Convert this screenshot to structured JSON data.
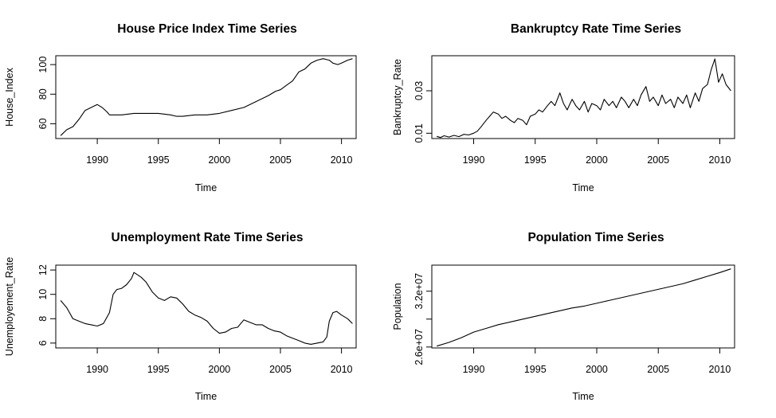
{
  "chart_data": [
    {
      "type": "line",
      "title": "House Price Index Time Series",
      "xlabel": "Time",
      "ylabel": "House_Index",
      "xlim": [
        1986.6,
        2011.2
      ],
      "ylim": [
        50,
        106
      ],
      "xticks": [
        1990,
        1995,
        2000,
        2005,
        2010
      ],
      "yticks": [
        60,
        80,
        100
      ],
      "ytick_labels": [
        "60",
        "80",
        "100"
      ],
      "x": [
        1987.0,
        1987.5,
        1988.0,
        1988.5,
        1989.0,
        1989.5,
        1990.0,
        1990.4,
        1990.8,
        1991.0,
        1991.5,
        1992.0,
        1993.0,
        1994.0,
        1995.0,
        1996.0,
        1996.5,
        1997.0,
        1998.0,
        1999.0,
        2000.0,
        2001.0,
        2002.0,
        2003.0,
        2004.0,
        2004.6,
        2005.0,
        2005.5,
        2006.0,
        2006.5,
        2007.0,
        2007.5,
        2008.0,
        2008.5,
        2009.0,
        2009.3,
        2009.7,
        2010.0,
        2010.5,
        2010.9
      ],
      "y": [
        52,
        56,
        58,
        63,
        69,
        71,
        73,
        71,
        68,
        66,
        66,
        66,
        67,
        67,
        67,
        66,
        65,
        65,
        66,
        66,
        67,
        69,
        71,
        75,
        79,
        82,
        83,
        86,
        89,
        95,
        97,
        101,
        103,
        104,
        103,
        101,
        100,
        101,
        103,
        104
      ]
    },
    {
      "type": "line",
      "title": "Bankruptcy Rate Time Series",
      "xlabel": "Time",
      "ylabel": "Bankruptcy_Rate",
      "xlim": [
        1986.6,
        2011.2
      ],
      "ylim": [
        0.0075,
        0.0465
      ],
      "xticks": [
        1990,
        1995,
        2000,
        2005,
        2010
      ],
      "yticks": [
        0.01,
        0.03
      ],
      "ytick_labels": [
        "0.01",
        "0.03"
      ],
      "x": [
        1987.0,
        1987.3,
        1987.6,
        1988.0,
        1988.4,
        1988.8,
        1989.2,
        1989.6,
        1990.0,
        1990.3,
        1990.6,
        1991.0,
        1991.3,
        1991.6,
        1992.0,
        1992.3,
        1992.6,
        1993.0,
        1993.3,
        1993.6,
        1994.0,
        1994.3,
        1994.6,
        1995.0,
        1995.3,
        1995.6,
        1996.0,
        1996.3,
        1996.6,
        1997.0,
        1997.3,
        1997.6,
        1998.0,
        1998.3,
        1998.6,
        1999.0,
        1999.3,
        1999.6,
        2000.0,
        2000.3,
        2000.6,
        2001.0,
        2001.3,
        2001.6,
        2002.0,
        2002.3,
        2002.6,
        2003.0,
        2003.3,
        2003.6,
        2004.0,
        2004.3,
        2004.6,
        2005.0,
        2005.3,
        2005.6,
        2006.0,
        2006.3,
        2006.6,
        2007.0,
        2007.3,
        2007.6,
        2008.0,
        2008.3,
        2008.6,
        2009.0,
        2009.3,
        2009.6,
        2009.9,
        2010.2,
        2010.5,
        2010.9
      ],
      "y": [
        0.0085,
        0.008,
        0.0088,
        0.0082,
        0.009,
        0.0084,
        0.0095,
        0.0092,
        0.01,
        0.011,
        0.013,
        0.016,
        0.018,
        0.02,
        0.019,
        0.017,
        0.018,
        0.016,
        0.015,
        0.017,
        0.016,
        0.014,
        0.018,
        0.019,
        0.021,
        0.02,
        0.023,
        0.025,
        0.023,
        0.029,
        0.024,
        0.021,
        0.026,
        0.023,
        0.021,
        0.025,
        0.02,
        0.024,
        0.023,
        0.021,
        0.026,
        0.023,
        0.025,
        0.022,
        0.027,
        0.025,
        0.022,
        0.026,
        0.023,
        0.028,
        0.032,
        0.025,
        0.027,
        0.023,
        0.028,
        0.024,
        0.026,
        0.022,
        0.027,
        0.024,
        0.028,
        0.022,
        0.029,
        0.025,
        0.031,
        0.033,
        0.04,
        0.045,
        0.034,
        0.038,
        0.033,
        0.03
      ]
    },
    {
      "type": "line",
      "title": "Unemployment Rate Time Series",
      "xlabel": "Time",
      "ylabel": "Unemployement_Rate",
      "xlim": [
        1986.6,
        2011.2
      ],
      "ylim": [
        5.6,
        12.4
      ],
      "xticks": [
        1990,
        1995,
        2000,
        2005,
        2010
      ],
      "yticks": [
        6,
        8,
        10,
        12
      ],
      "ytick_labels": [
        "6",
        "8",
        "10",
        "12"
      ],
      "x": [
        1987.0,
        1987.5,
        1988.0,
        1988.5,
        1989.0,
        1989.5,
        1990.0,
        1990.5,
        1991.0,
        1991.3,
        1991.6,
        1992.0,
        1992.4,
        1992.8,
        1993.0,
        1993.3,
        1993.6,
        1994.0,
        1994.5,
        1995.0,
        1995.5,
        1996.0,
        1996.5,
        1997.0,
        1997.5,
        1998.0,
        1998.5,
        1999.0,
        1999.5,
        2000.0,
        2000.5,
        2001.0,
        2001.5,
        2002.0,
        2002.5,
        2003.0,
        2003.5,
        2004.0,
        2004.5,
        2005.0,
        2005.5,
        2006.0,
        2006.5,
        2007.0,
        2007.5,
        2008.0,
        2008.5,
        2008.8,
        2009.0,
        2009.3,
        2009.6,
        2010.0,
        2010.5,
        2010.9
      ],
      "y": [
        9.5,
        8.9,
        8.0,
        7.8,
        7.6,
        7.5,
        7.4,
        7.6,
        8.5,
        10.0,
        10.4,
        10.5,
        10.8,
        11.3,
        11.8,
        11.6,
        11.4,
        11.0,
        10.2,
        9.7,
        9.5,
        9.8,
        9.7,
        9.2,
        8.6,
        8.3,
        8.1,
        7.8,
        7.2,
        6.8,
        6.9,
        7.2,
        7.3,
        7.9,
        7.7,
        7.5,
        7.5,
        7.2,
        7.0,
        6.9,
        6.6,
        6.4,
        6.2,
        6.0,
        5.9,
        6.0,
        6.1,
        6.5,
        7.8,
        8.5,
        8.6,
        8.3,
        8.0,
        7.6
      ]
    },
    {
      "type": "line",
      "title": "Population Time Series",
      "xlabel": "Time",
      "ylabel": "Population",
      "xlim": [
        1986.6,
        2011.2
      ],
      "ylim": [
        25900000,
        34800000
      ],
      "xticks": [
        1990,
        1995,
        2000,
        2005,
        2010
      ],
      "yticks": [
        26000000,
        29000000,
        32000000
      ],
      "ytick_labels": [
        "2.6e+07",
        "",
        "3.2e+07"
      ],
      "x": [
        1987.0,
        1988.0,
        1989.0,
        1990.0,
        1991.0,
        1992.0,
        1993.0,
        1994.0,
        1995.0,
        1996.0,
        1997.0,
        1998.0,
        1999.0,
        2000.0,
        2001.0,
        2002.0,
        2003.0,
        2004.0,
        2005.0,
        2006.0,
        2007.0,
        2008.0,
        2009.0,
        2010.0,
        2010.9
      ],
      "y": [
        26100000,
        26500000,
        27000000,
        27600000,
        28000000,
        28400000,
        28700000,
        29000000,
        29300000,
        29600000,
        29900000,
        30200000,
        30400000,
        30700000,
        31000000,
        31300000,
        31600000,
        31900000,
        32200000,
        32500000,
        32800000,
        33200000,
        33600000,
        34000000,
        34400000
      ]
    }
  ]
}
